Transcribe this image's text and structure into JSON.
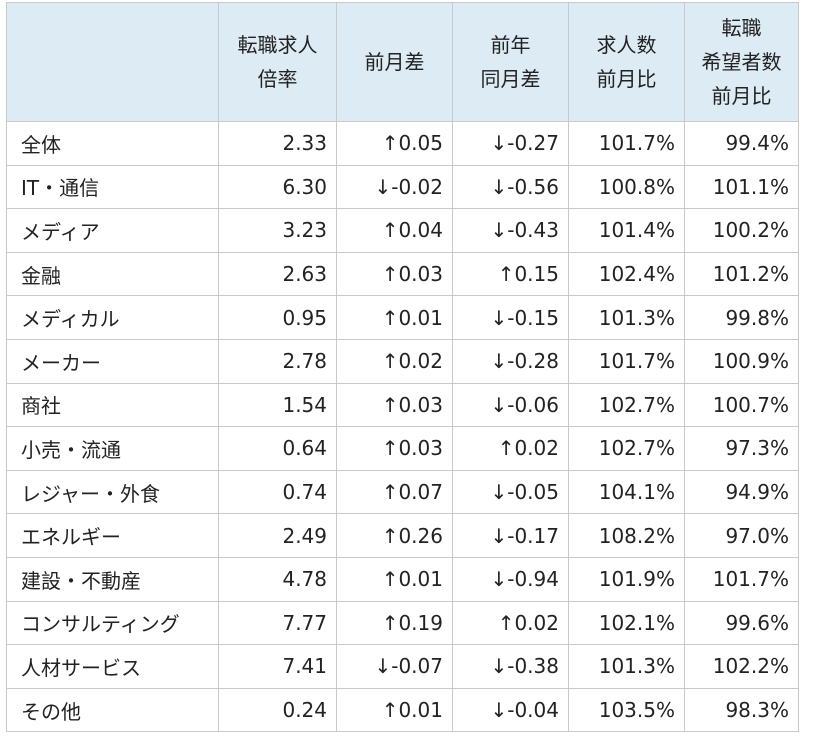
{
  "header": {
    "label": "",
    "ratio": [
      "転職求人",
      "倍率"
    ],
    "mom": [
      "前月差"
    ],
    "yoy": [
      "前年",
      "同月差"
    ],
    "jobs": [
      "求人数",
      "前月比"
    ],
    "seekers": [
      "転職",
      "希望者数",
      "前月比"
    ]
  },
  "rows": [
    {
      "industry": "全体",
      "ratio": "2.33",
      "mom": "↑0.05",
      "yoy": "↓-0.27",
      "jobs": "101.7%",
      "seekers": "99.4%"
    },
    {
      "industry": "IT・通信",
      "ratio": "6.30",
      "mom": "↓-0.02",
      "yoy": "↓-0.56",
      "jobs": "100.8%",
      "seekers": "101.1%"
    },
    {
      "industry": "メディア",
      "ratio": "3.23",
      "mom": "↑0.04",
      "yoy": "↓-0.43",
      "jobs": "101.4%",
      "seekers": "100.2%"
    },
    {
      "industry": "金融",
      "ratio": "2.63",
      "mom": "↑0.03",
      "yoy": "↑0.15",
      "jobs": "102.4%",
      "seekers": "101.2%"
    },
    {
      "industry": "メディカル",
      "ratio": "0.95",
      "mom": "↑0.01",
      "yoy": "↓-0.15",
      "jobs": "101.3%",
      "seekers": "99.8%"
    },
    {
      "industry": "メーカー",
      "ratio": "2.78",
      "mom": "↑0.02",
      "yoy": "↓-0.28",
      "jobs": "101.7%",
      "seekers": "100.9%"
    },
    {
      "industry": "商社",
      "ratio": "1.54",
      "mom": "↑0.03",
      "yoy": "↓-0.06",
      "jobs": "102.7%",
      "seekers": "100.7%"
    },
    {
      "industry": "小売・流通",
      "ratio": "0.64",
      "mom": "↑0.03",
      "yoy": "↑0.02",
      "jobs": "102.7%",
      "seekers": "97.3%"
    },
    {
      "industry": "レジャー・外食",
      "ratio": "0.74",
      "mom": "↑0.07",
      "yoy": "↓-0.05",
      "jobs": "104.1%",
      "seekers": "94.9%"
    },
    {
      "industry": "エネルギー",
      "ratio": "2.49",
      "mom": "↑0.26",
      "yoy": "↓-0.17",
      "jobs": "108.2%",
      "seekers": "97.0%"
    },
    {
      "industry": "建設・不動産",
      "ratio": "4.78",
      "mom": "↑0.01",
      "yoy": "↓-0.94",
      "jobs": "101.9%",
      "seekers": "101.7%"
    },
    {
      "industry": "コンサルティング",
      "ratio": "7.77",
      "mom": "↑0.19",
      "yoy": "↑0.02",
      "jobs": "102.1%",
      "seekers": "99.6%"
    },
    {
      "industry": "人材サービス",
      "ratio": "7.41",
      "mom": "↓-0.07",
      "yoy": "↓-0.38",
      "jobs": "101.3%",
      "seekers": "102.2%"
    },
    {
      "industry": "その他",
      "ratio": "0.24",
      "mom": "↑0.01",
      "yoy": "↓-0.04",
      "jobs": "103.5%",
      "seekers": "98.3%"
    }
  ]
}
